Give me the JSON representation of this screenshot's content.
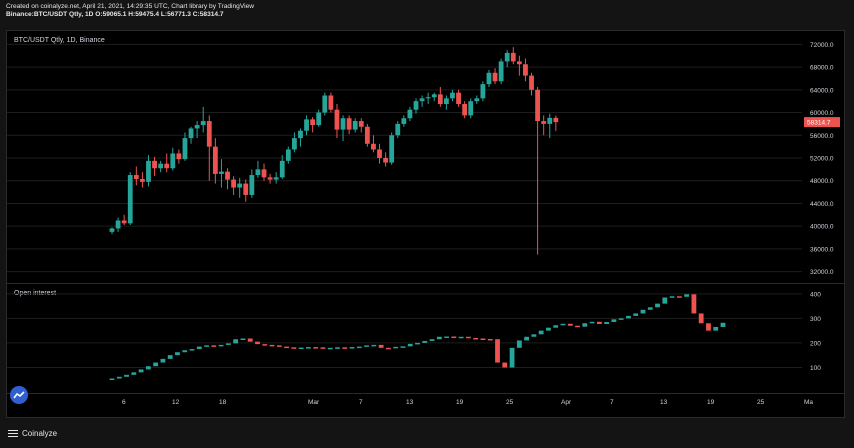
{
  "header": {
    "line1": "Created on coinalyze.net, April 21, 2021, 14:29:35 UTC, Chart library by TradingView",
    "line2": "Binance:BTC/USDT Qtly, 1D O:59065.1 H:59475.4 L:56771.3 C:58314.7"
  },
  "footer": {
    "brand": "Coinalyze"
  },
  "colors": {
    "up": "#26a69a",
    "down": "#ef5350",
    "grid": "#1e1e1e",
    "axis_text": "#d1d4dc"
  },
  "chart_data": [
    {
      "type": "candlestick",
      "title": "BTC/USDT Qtly, 1D, Binance",
      "ylim": [
        30000,
        74000
      ],
      "y_ticks": [
        "72000.0",
        "68000.0",
        "64000.0",
        "60000.0",
        "56000.0",
        "52000.0",
        "48000.0",
        "44000.0",
        "40000.0",
        "36000.0",
        "32000.0"
      ],
      "last_price_label": "58314.7",
      "x_tick_labels": [
        "6",
        "12",
        "18",
        "Mar",
        "7",
        "13",
        "19",
        "25",
        "Apr",
        "7",
        "13",
        "19",
        "25",
        "Ma"
      ],
      "ohlc": [
        [
          39000,
          39800,
          38600,
          39600
        ],
        [
          39600,
          41500,
          39000,
          41000
        ],
        [
          41000,
          42000,
          40200,
          40500
        ],
        [
          40500,
          49500,
          40200,
          49000
        ],
        [
          49000,
          50500,
          47200,
          48300
        ],
        [
          48300,
          49500,
          46800,
          47800
        ],
        [
          47800,
          52500,
          47000,
          51500
        ],
        [
          51500,
          52200,
          48800,
          50200
        ],
        [
          50200,
          51500,
          49500,
          51000
        ],
        [
          51000,
          52800,
          49500,
          50200
        ],
        [
          50200,
          53800,
          49800,
          52800
        ],
        [
          52800,
          53500,
          51000,
          51800
        ],
        [
          51800,
          56500,
          51500,
          55500
        ],
        [
          55500,
          57500,
          54500,
          57200
        ],
        [
          57200,
          58500,
          55500,
          57800
        ],
        [
          57800,
          61000,
          56500,
          58500
        ],
        [
          58500,
          59500,
          48000,
          54000
        ],
        [
          54000,
          55500,
          47500,
          49200
        ],
        [
          49200,
          51800,
          46800,
          49600
        ],
        [
          49600,
          50200,
          46500,
          48200
        ],
        [
          48200,
          48800,
          45500,
          46800
        ],
        [
          46800,
          48500,
          45000,
          47500
        ],
        [
          47500,
          48200,
          44300,
          45500
        ],
        [
          45500,
          50000,
          45000,
          49000
        ],
        [
          49000,
          51500,
          48500,
          50000
        ],
        [
          50000,
          51000,
          48000,
          48600
        ],
        [
          48600,
          49200,
          47500,
          48200
        ],
        [
          48200,
          49500,
          47500,
          48600
        ],
        [
          48600,
          52500,
          48300,
          51500
        ],
        [
          51500,
          54000,
          51000,
          53500
        ],
        [
          53500,
          56500,
          53000,
          55500
        ],
        [
          55500,
          57200,
          54000,
          56800
        ],
        [
          56800,
          59500,
          56000,
          58800
        ],
        [
          58800,
          59200,
          56500,
          57800
        ],
        [
          57800,
          60500,
          57500,
          60000
        ],
        [
          60000,
          63500,
          59500,
          63000
        ],
        [
          63000,
          63500,
          60000,
          60500
        ],
        [
          60500,
          61500,
          55500,
          57000
        ],
        [
          57000,
          59500,
          55000,
          59000
        ],
        [
          59000,
          59500,
          56200,
          57000
        ],
        [
          57000,
          59000,
          56500,
          58500
        ],
        [
          58500,
          59000,
          56500,
          57500
        ],
        [
          57500,
          58000,
          54000,
          54500
        ],
        [
          54500,
          56000,
          53000,
          53500
        ],
        [
          53500,
          54500,
          51000,
          52000
        ],
        [
          52000,
          53000,
          50500,
          51200
        ],
        [
          51200,
          56500,
          50800,
          56000
        ],
        [
          56000,
          58500,
          55500,
          58000
        ],
        [
          58000,
          59500,
          57500,
          59000
        ],
        [
          59000,
          61000,
          58500,
          60500
        ],
        [
          60500,
          62500,
          59800,
          62000
        ],
        [
          62000,
          63000,
          61000,
          62500
        ],
        [
          62500,
          63500,
          61500,
          62700
        ],
        [
          62700,
          63500,
          62000,
          63200
        ],
        [
          63200,
          64500,
          61000,
          61500
        ],
        [
          61500,
          63000,
          60500,
          62500
        ],
        [
          62500,
          64000,
          62000,
          63500
        ],
        [
          63500,
          64000,
          61000,
          61500
        ],
        [
          61500,
          62000,
          59000,
          59500
        ],
        [
          59500,
          62500,
          59000,
          62000
        ],
        [
          62000,
          63000,
          61500,
          62500
        ],
        [
          62500,
          65500,
          62000,
          65000
        ],
        [
          65000,
          67500,
          64500,
          67000
        ],
        [
          67000,
          67800,
          65000,
          65500
        ],
        [
          65500,
          69500,
          65000,
          69000
        ],
        [
          69000,
          71000,
          68000,
          70500
        ],
        [
          70500,
          71500,
          68500,
          69000
        ],
        [
          69000,
          70000,
          66500,
          68500
        ],
        [
          68500,
          69500,
          65500,
          66500
        ],
        [
          66500,
          67000,
          63000,
          64000
        ],
        [
          64000,
          64500,
          35000,
          58500
        ],
        [
          58500,
          59500,
          56000,
          58000
        ],
        [
          58000,
          59800,
          55500,
          59065.1
        ],
        [
          59065.1,
          59475.4,
          56771.3,
          58314.7
        ]
      ]
    },
    {
      "type": "bar",
      "title": "Open interest",
      "ylim": [
        0,
        440
      ],
      "y_ticks": [
        "400",
        "300",
        "200",
        "100"
      ],
      "values": [
        55,
        62,
        70,
        80,
        92,
        105,
        120,
        135,
        150,
        162,
        170,
        175,
        185,
        190,
        186,
        192,
        198,
        215,
        218,
        205,
        195,
        192,
        190,
        185,
        182,
        180,
        181,
        183,
        182,
        180,
        180,
        182,
        178,
        183,
        185,
        190,
        192,
        180,
        178,
        184,
        186,
        196,
        200,
        208,
        215,
        225,
        226,
        222,
        225,
        220,
        218,
        216,
        215,
        120,
        100,
        180,
        210,
        225,
        235,
        250,
        262,
        272,
        278,
        270,
        266,
        280,
        286,
        277,
        285,
        296,
        300,
        310,
        320,
        335,
        345,
        360,
        385,
        390,
        388,
        398,
        320,
        280,
        250,
        265,
        282
      ]
    }
  ]
}
